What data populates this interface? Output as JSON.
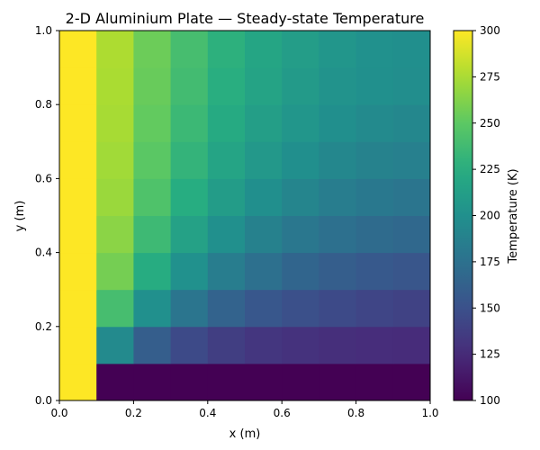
{
  "chart_data": {
    "type": "heatmap",
    "title": "2-D Aluminium Plate — Steady-state Temperature",
    "xlabel": "x (m)",
    "ylabel": "y (m)",
    "xlim": [
      0.0,
      1.0
    ],
    "ylim": [
      0.0,
      1.0
    ],
    "x_ticks": [
      "0.0",
      "0.2",
      "0.4",
      "0.6",
      "0.8",
      "1.0"
    ],
    "y_ticks": [
      "0.0",
      "0.2",
      "0.4",
      "0.6",
      "0.8",
      "1.0"
    ],
    "x_edges": [
      0.0,
      0.1,
      0.2,
      0.3,
      0.4,
      0.5,
      0.6,
      0.7,
      0.8,
      0.9,
      1.0
    ],
    "y_edges": [
      0.0,
      0.1,
      0.2,
      0.3,
      0.4,
      0.5,
      0.6,
      0.7,
      0.8,
      0.9,
      1.0
    ],
    "colormap": "viridis",
    "grid": false,
    "colorbar": {
      "label": "Temperature (K)",
      "range": [
        100,
        300
      ],
      "ticks": [
        "100",
        "125",
        "150",
        "175",
        "200",
        "225",
        "250",
        "275",
        "300"
      ]
    },
    "values": [
      [
        300,
        100,
        100,
        100,
        100,
        100,
        100,
        100,
        100,
        100
      ],
      [
        300,
        195,
        160,
        145,
        137,
        132,
        129,
        127,
        126,
        125
      ],
      [
        300,
        240,
        200,
        178,
        164,
        155,
        149,
        145,
        142,
        140
      ],
      [
        300,
        258,
        224,
        201,
        185,
        174,
        166,
        160,
        156,
        154
      ],
      [
        300,
        265,
        236,
        215,
        200,
        188,
        180,
        174,
        170,
        168
      ],
      [
        300,
        270,
        244,
        225,
        210,
        199,
        191,
        185,
        181,
        178
      ],
      [
        300,
        272,
        249,
        231,
        217,
        207,
        199,
        193,
        189,
        187
      ],
      [
        300,
        274,
        252,
        235,
        222,
        212,
        205,
        199,
        195,
        193
      ],
      [
        300,
        275,
        254,
        238,
        226,
        216,
        209,
        203,
        200,
        198
      ],
      [
        300,
        276,
        255,
        240,
        228,
        218,
        211,
        205,
        201,
        199
      ]
    ]
  }
}
